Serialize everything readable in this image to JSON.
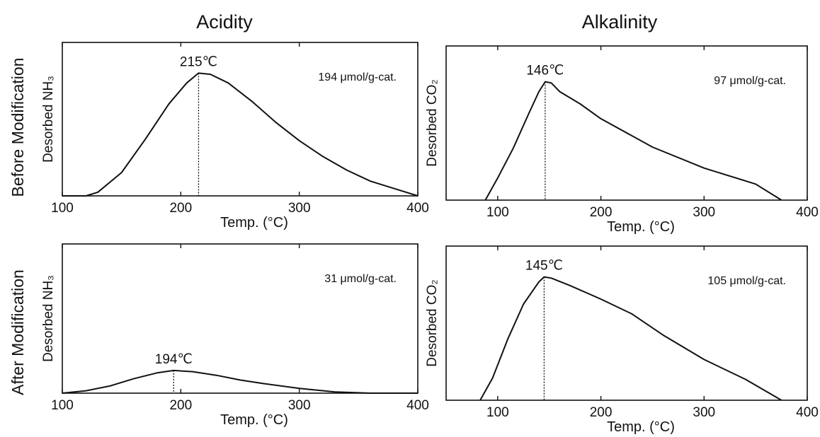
{
  "columns": {
    "left": "Acidity",
    "right": "Alkalinity"
  },
  "rows": {
    "top": "Before Modification",
    "bottom": "After Modification"
  },
  "chart_data": [
    {
      "type": "line",
      "column": "Acidity",
      "row": "Before Modification",
      "ylabel": "Desorbed NH₃",
      "xlabel": "Temp. (°C)",
      "xlim": [
        100,
        400
      ],
      "xticks": [
        "100",
        "200",
        "300",
        "400"
      ],
      "peak_temp": 215,
      "peak_label": "215℃",
      "amount_label": "194 μmol/g-cat.",
      "series": [
        {
          "x": [
            100,
            120,
            130,
            150,
            170,
            190,
            205,
            215,
            225,
            240,
            260,
            280,
            300,
            320,
            340,
            360,
            380,
            400
          ],
          "y": [
            0,
            0,
            0.03,
            0.19,
            0.46,
            0.75,
            0.92,
            1.0,
            0.99,
            0.92,
            0.77,
            0.6,
            0.45,
            0.32,
            0.21,
            0.12,
            0.06,
            0.0
          ]
        }
      ]
    },
    {
      "type": "line",
      "column": "Alkalinity",
      "row": "Before Modification",
      "ylabel": "Desorbed CO₂",
      "xlabel": "Temp. (°C)",
      "xlim": [
        50,
        400
      ],
      "xticks": [
        "100",
        "200",
        "300",
        "400"
      ],
      "peak_temp": 146,
      "peak_label": "146℃",
      "amount_label": "97 μmol/g-cat.",
      "series": [
        {
          "x": [
            88,
            100,
            115,
            130,
            140,
            146,
            152,
            160,
            180,
            200,
            250,
            300,
            350,
            375
          ],
          "y": [
            0,
            0.18,
            0.42,
            0.7,
            0.88,
            0.96,
            0.95,
            0.88,
            0.78,
            0.66,
            0.43,
            0.26,
            0.13,
            0.0
          ]
        }
      ]
    },
    {
      "type": "line",
      "column": "Acidity",
      "row": "After Modification",
      "ylabel": "Desorbed NH₃",
      "xlabel": "Temp. (°C)",
      "xlim": [
        100,
        400
      ],
      "xticks": [
        "100",
        "200",
        "300",
        "400"
      ],
      "peak_temp": 194,
      "peak_label": "194℃",
      "amount_label": "31 μmol/g-cat.",
      "series": [
        {
          "x": [
            100,
            120,
            140,
            160,
            180,
            194,
            210,
            230,
            250,
            270,
            300,
            330,
            360,
            400
          ],
          "y": [
            0,
            0.02,
            0.06,
            0.12,
            0.17,
            0.19,
            0.18,
            0.15,
            0.11,
            0.08,
            0.04,
            0.01,
            0,
            0
          ]
        }
      ]
    },
    {
      "type": "line",
      "column": "Alkalinity",
      "row": "After Modification",
      "ylabel": "Desorbed CO₂",
      "xlabel": "Temp. (°C)",
      "xlim": [
        50,
        400
      ],
      "xticks": [
        "100",
        "200",
        "300",
        "400"
      ],
      "peak_temp": 145,
      "peak_label": "145℃",
      "amount_label": "105 μmol/g-cat.",
      "series": [
        {
          "x": [
            83,
            95,
            110,
            125,
            140,
            145,
            152,
            170,
            200,
            230,
            260,
            300,
            340,
            375
          ],
          "y": [
            0,
            0.18,
            0.5,
            0.78,
            0.96,
            1.0,
            0.99,
            0.93,
            0.82,
            0.7,
            0.53,
            0.33,
            0.17,
            0.0
          ]
        }
      ]
    }
  ]
}
